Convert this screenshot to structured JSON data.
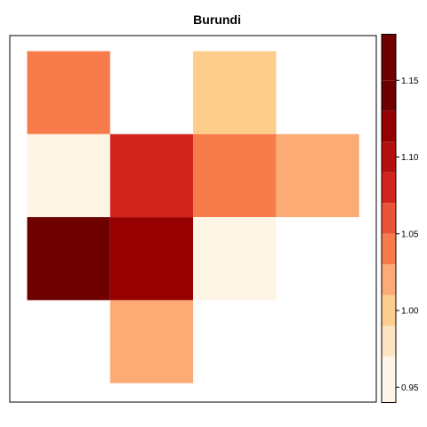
{
  "chart_data": {
    "type": "heatmap",
    "title": "Burundi",
    "rows": 4,
    "cols": 4,
    "cells": [
      {
        "row": 0,
        "col": 0,
        "value": 1.04
      },
      {
        "row": 0,
        "col": 2,
        "value": 0.99
      },
      {
        "row": 1,
        "col": 0,
        "value": 0.96
      },
      {
        "row": 1,
        "col": 1,
        "value": 1.07
      },
      {
        "row": 1,
        "col": 2,
        "value": 1.04
      },
      {
        "row": 1,
        "col": 3,
        "value": 1.01
      },
      {
        "row": 2,
        "col": 0,
        "value": 1.17
      },
      {
        "row": 2,
        "col": 1,
        "value": 1.11
      },
      {
        "row": 2,
        "col": 2,
        "value": 0.96
      },
      {
        "row": 3,
        "col": 1,
        "value": 1.01
      }
    ],
    "colorbar": {
      "breaks": [
        0.94,
        0.97,
        0.99,
        1.01,
        1.03,
        1.05,
        1.07,
        1.09,
        1.11,
        1.13,
        1.15,
        1.18
      ],
      "colors": [
        "#fff5e6",
        "#fde4c0",
        "#fdcd8c",
        "#fcab74",
        "#f87c4b",
        "#e95438",
        "#d0241d",
        "#b3100e",
        "#960000",
        "#6e0000",
        "#6e0000"
      ],
      "ticks": [
        0.95,
        1.0,
        1.05,
        1.1,
        1.15
      ],
      "tick_labels": [
        "0.95",
        "1.00",
        "1.05",
        "1.10",
        "1.15"
      ],
      "range": [
        0.94,
        1.18
      ]
    }
  }
}
